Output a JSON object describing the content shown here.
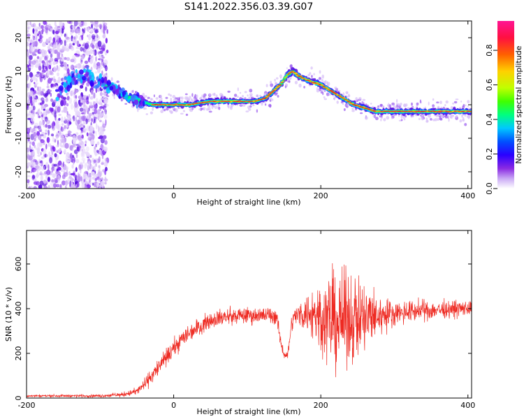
{
  "title": "S141.2022.356.03.39.G07",
  "colors": {
    "snr_line": "#ee2a22",
    "ridge_core": "#e8202a",
    "noise_purple": "#7a1ff0",
    "colorbar": [
      "#ffffff",
      "#c9a8f5",
      "#8a2be2",
      "#2a00ff",
      "#0050ff",
      "#00c8ff",
      "#00ff80",
      "#40ff00",
      "#c0ff00",
      "#ffd000",
      "#ff6000",
      "#ff1040",
      "#ff1493"
    ]
  },
  "chart_data": [
    {
      "type": "heatmap",
      "xlabel": "Height of straight line (km)",
      "ylabel": "Frequency (Hz)",
      "xlim": [
        -200,
        405
      ],
      "ylim": [
        -25,
        25
      ],
      "x_ticks": [
        "-200",
        "0",
        "200",
        "400"
      ],
      "y_ticks": [
        "-20",
        "-10",
        "0",
        "10",
        "20"
      ],
      "colorbar": {
        "label": "Normalized spectral amplitude",
        "range": [
          0,
          0.97
        ],
        "ticks": [
          "0.0",
          "0.2",
          "0.4",
          "0.6",
          "0.8"
        ]
      },
      "ridge": {
        "x": [
          -190,
          -155,
          -135,
          -120,
          -105,
          -90,
          -75,
          -60,
          -45,
          -30,
          -15,
          0,
          20,
          50,
          80,
          110,
          125,
          135,
          145,
          155,
          162,
          168,
          175,
          185,
          200,
          215,
          230,
          245,
          260,
          275,
          300,
          330,
          360,
          380,
          405
        ],
        "y": [
          0,
          4,
          8,
          9,
          7,
          6,
          4,
          2,
          1,
          0,
          0,
          0,
          0,
          1,
          1,
          1,
          2,
          4,
          6,
          9,
          10,
          9,
          8,
          7,
          6,
          4,
          2,
          0,
          -1,
          -2,
          -2,
          -2,
          -2,
          -2,
          -2
        ]
      }
    },
    {
      "type": "line",
      "xlabel": "Height of straight line (km)",
      "ylabel": "SNR (10 * v/v)",
      "xlim": [
        -200,
        405
      ],
      "ylim": [
        0,
        750
      ],
      "x_ticks": [
        "-200",
        "0",
        "200",
        "400"
      ],
      "y_ticks": [
        "0",
        "200",
        "400",
        "600"
      ],
      "series": [
        {
          "envelope_x": [
            -200,
            -150,
            -100,
            -70,
            -50,
            -40,
            -30,
            -20,
            -10,
            0,
            10,
            20,
            30,
            40,
            50,
            60,
            80,
            100,
            120,
            140,
            145,
            150,
            155,
            160,
            165,
            180,
            200,
            220,
            240,
            260,
            280,
            300,
            330,
            360,
            390,
            405
          ],
          "envelope_mean": [
            10,
            10,
            10,
            15,
            30,
            60,
            100,
            140,
            180,
            220,
            260,
            290,
            310,
            330,
            350,
            360,
            365,
            370,
            370,
            370,
            250,
            200,
            190,
            330,
            370,
            380,
            370,
            340,
            360,
            350,
            370,
            380,
            390,
            395,
            400,
            400
          ],
          "envelope_spread": [
            8,
            8,
            10,
            15,
            25,
            40,
            50,
            55,
            60,
            60,
            60,
            60,
            60,
            55,
            55,
            55,
            55,
            55,
            55,
            55,
            40,
            30,
            30,
            50,
            60,
            120,
            250,
            320,
            300,
            250,
            130,
            80,
            70,
            60,
            55,
            55
          ]
        }
      ]
    }
  ]
}
